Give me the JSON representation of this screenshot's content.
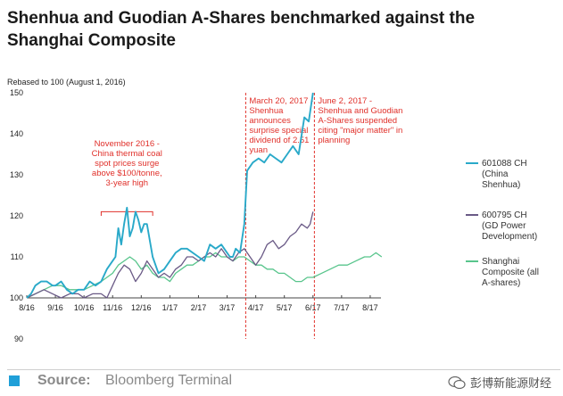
{
  "title": "Shenhua and Guodian A-Shares benchmarked against the Shanghai Composite",
  "footer": {
    "source_label": "Source:",
    "source_value": "Bloomberg Terminal",
    "watermark": "彭博新能源财经"
  },
  "colors": {
    "shenhua": "#29a9c9",
    "gdpower": "#6a5a86",
    "composite": "#58c58c",
    "annotation": "#e0302a"
  },
  "chart_data": {
    "type": "line",
    "title": "Shenhua and Guodian A-Shares benchmarked against the Shanghai Composite",
    "ylabel": "Rebased to 100 (August 1, 2016)",
    "xlabel": "",
    "ylim": [
      90,
      150
    ],
    "yticks": [
      90,
      100,
      110,
      120,
      130,
      140,
      150
    ],
    "xlim": [
      0,
      13
    ],
    "xticks": [
      {
        "x": 0,
        "label": "8/16"
      },
      {
        "x": 1,
        "label": "9/16"
      },
      {
        "x": 2,
        "label": "10/16"
      },
      {
        "x": 3,
        "label": "11/16"
      },
      {
        "x": 4,
        "label": "12/16"
      },
      {
        "x": 5,
        "label": "1/17"
      },
      {
        "x": 6,
        "label": "2/17"
      },
      {
        "x": 7,
        "label": "3/17"
      },
      {
        "x": 8,
        "label": "4/17"
      },
      {
        "x": 9,
        "label": "5/17"
      },
      {
        "x": 10,
        "label": "6/17"
      },
      {
        "x": 11,
        "label": "7/17"
      },
      {
        "x": 12,
        "label": "8/17"
      }
    ],
    "grid": false,
    "legend_position": "right",
    "series": [
      {
        "name": "601088 CH (China Shenhua)",
        "name_lines": [
          "601088 CH",
          "(China",
          "Shenhua)"
        ],
        "color": "#29a9c9",
        "x": [
          0,
          0.15,
          0.3,
          0.5,
          0.7,
          0.9,
          1.0,
          1.2,
          1.4,
          1.6,
          1.8,
          2.0,
          2.2,
          2.4,
          2.6,
          2.8,
          3.0,
          3.1,
          3.2,
          3.3,
          3.4,
          3.5,
          3.6,
          3.7,
          3.8,
          3.9,
          4.0,
          4.1,
          4.2,
          4.4,
          4.6,
          4.8,
          5.0,
          5.2,
          5.4,
          5.6,
          5.8,
          6.0,
          6.2,
          6.4,
          6.6,
          6.8,
          7.0,
          7.1,
          7.2,
          7.3,
          7.45,
          7.6,
          7.7,
          7.9,
          8.1,
          8.3,
          8.5,
          8.7,
          8.9,
          9.1,
          9.3,
          9.5,
          9.7,
          9.85,
          10.0
        ],
        "y": [
          100,
          101,
          103,
          104,
          104,
          103,
          103,
          104,
          102,
          101,
          102,
          102,
          104,
          103,
          104,
          107,
          109,
          110,
          117,
          113,
          118,
          122,
          115,
          117,
          121,
          119,
          116,
          118,
          118,
          110,
          106,
          107,
          109,
          111,
          112,
          112,
          111,
          110,
          109,
          113,
          112,
          113,
          111,
          110,
          110,
          112,
          111,
          118,
          131,
          133,
          134,
          133,
          135,
          134,
          133,
          135,
          137,
          135,
          144,
          143,
          150
        ]
      },
      {
        "name": "600795 CH (GD Power Development)",
        "name_lines": [
          "600795 CH",
          "(GD Power",
          "Development)"
        ],
        "color": "#6a5a86",
        "x": [
          0,
          0.3,
          0.6,
          0.9,
          1.2,
          1.5,
          1.8,
          2.0,
          2.3,
          2.6,
          2.8,
          3.0,
          3.2,
          3.4,
          3.6,
          3.8,
          4.0,
          4.2,
          4.4,
          4.6,
          4.8,
          5.0,
          5.2,
          5.4,
          5.6,
          5.8,
          6.0,
          6.2,
          6.4,
          6.6,
          6.8,
          7.0,
          7.2,
          7.4,
          7.6,
          7.8,
          8.0,
          8.2,
          8.4,
          8.6,
          8.8,
          9.0,
          9.2,
          9.4,
          9.6,
          9.8,
          9.9,
          10.0
        ],
        "y": [
          100,
          101,
          102,
          101,
          100,
          101,
          101,
          100,
          101,
          101,
          100,
          103,
          106,
          108,
          107,
          104,
          106,
          109,
          107,
          105,
          106,
          105,
          107,
          108,
          110,
          110,
          109,
          110,
          111,
          110,
          112,
          110,
          109,
          111,
          112,
          110,
          108,
          110,
          113,
          114,
          112,
          113,
          115,
          116,
          118,
          117,
          118,
          121
        ]
      },
      {
        "name": "Shanghai Composite (all A-shares)",
        "name_lines": [
          "Shanghai",
          "Composite (all",
          "A-shares)"
        ],
        "color": "#58c58c",
        "x": [
          0,
          0.3,
          0.6,
          0.9,
          1.2,
          1.5,
          1.8,
          2.0,
          2.3,
          2.6,
          2.8,
          3.0,
          3.2,
          3.4,
          3.6,
          3.8,
          4.0,
          4.2,
          4.4,
          4.6,
          4.8,
          5.0,
          5.2,
          5.4,
          5.6,
          5.8,
          6.0,
          6.2,
          6.4,
          6.6,
          6.8,
          7.0,
          7.2,
          7.4,
          7.6,
          7.8,
          8.0,
          8.2,
          8.4,
          8.6,
          8.8,
          9.0,
          9.2,
          9.4,
          9.6,
          9.8,
          10.0,
          10.3,
          10.6,
          10.9,
          11.2,
          11.5,
          11.8,
          12.0,
          12.2,
          12.4
        ],
        "y": [
          100,
          101,
          102,
          103,
          103,
          102,
          102,
          102,
          103,
          104,
          105,
          106,
          108,
          109,
          110,
          109,
          107,
          108,
          106,
          105,
          105,
          104,
          106,
          107,
          108,
          108,
          109,
          110,
          110,
          111,
          110,
          110,
          109,
          110,
          110,
          109,
          108,
          108,
          107,
          107,
          106,
          106,
          105,
          104,
          104,
          105,
          105,
          106,
          107,
          108,
          108,
          109,
          110,
          110,
          111,
          110
        ]
      }
    ],
    "annotations": [
      {
        "lines": [
          "November 2016 -",
          "China thermal coal",
          "spot prices surge",
          "above $100/tonne,",
          "3-year high"
        ],
        "bracket_from": 2.6,
        "bracket_to": 4.4
      },
      {
        "lines": [
          "March 20, 2017 -",
          "Shenhua",
          "announces",
          "surprise special",
          "dividend of 2.51",
          "yuan"
        ],
        "vline_x": 7.65
      },
      {
        "lines": [
          "June 2, 2017 -",
          "Shenhua and Guodian",
          "A-Shares suspended",
          "citing \"major matter\" in",
          "planning"
        ],
        "vline_x": 10.05
      }
    ]
  }
}
